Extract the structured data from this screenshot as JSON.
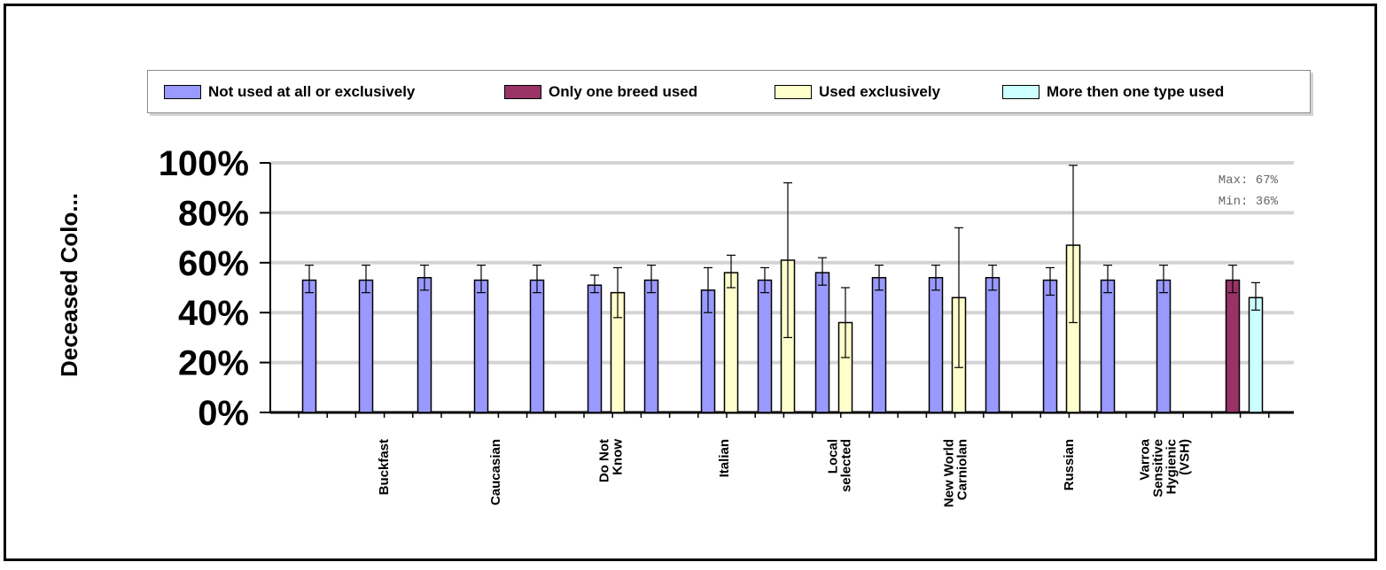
{
  "chart_data": {
    "type": "bar",
    "ylabel": "Deceased Colo...",
    "ylim": [
      0,
      100
    ],
    "yticks": [
      "0%",
      "20%",
      "40%",
      "60%",
      "80%",
      "100%"
    ],
    "grid": true,
    "legend_position": "top",
    "series": [
      {
        "name": "Not used at all or exclusively",
        "color": "#9999ff"
      },
      {
        "name": "Only one breed used",
        "color": "#993366"
      },
      {
        "name": "Used exclusively",
        "color": "#ffffcc"
      },
      {
        "name": "More then one type used",
        "color": "#ccffff"
      }
    ],
    "categories": [
      "Buckfast",
      "Caucasian",
      "Do Not Know",
      "Italian",
      "Local selected",
      "New World Carniolan",
      "Russian",
      "Varroa Sensitive Hygienic (VSH)"
    ],
    "bars": [
      {
        "series": 0,
        "value": 53,
        "low": 48,
        "high": 59
      },
      {
        "series": 0,
        "value": 53,
        "low": 48,
        "high": 59
      },
      {
        "series": 0,
        "value": 54,
        "low": 49,
        "high": 59
      },
      {
        "series": 0,
        "value": 53,
        "low": 48,
        "high": 59
      },
      {
        "series": 0,
        "value": 53,
        "low": 48,
        "high": 59
      },
      {
        "series": 0,
        "value": 51,
        "low": 48,
        "high": 55
      },
      {
        "series": 2,
        "value": 48,
        "low": 38,
        "high": 58
      },
      {
        "series": 0,
        "value": 53,
        "low": 48,
        "high": 59
      },
      {
        "series": 0,
        "value": 49,
        "low": 40,
        "high": 58
      },
      {
        "series": 2,
        "value": 56,
        "low": 50,
        "high": 63
      },
      {
        "series": 0,
        "value": 53,
        "low": 48,
        "high": 58
      },
      {
        "series": 2,
        "value": 61,
        "low": 30,
        "high": 92
      },
      {
        "series": 0,
        "value": 56,
        "low": 51,
        "high": 62
      },
      {
        "series": 2,
        "value": 36,
        "low": 22,
        "high": 50
      },
      {
        "series": 0,
        "value": 54,
        "low": 49,
        "high": 59
      },
      {
        "series": 0,
        "value": 54,
        "low": 49,
        "high": 59
      },
      {
        "series": 2,
        "value": 46,
        "low": 18,
        "high": 74
      },
      {
        "series": 0,
        "value": 54,
        "low": 49,
        "high": 59
      },
      {
        "series": 0,
        "value": 53,
        "low": 47,
        "high": 58
      },
      {
        "series": 2,
        "value": 67,
        "low": 36,
        "high": 99
      },
      {
        "series": 0,
        "value": 53,
        "low": 48,
        "high": 59
      },
      {
        "series": 0,
        "value": 53,
        "low": 48,
        "high": 59
      },
      {
        "series": 1,
        "value": 53,
        "low": 48,
        "high": 59
      },
      {
        "series": 3,
        "value": 46,
        "low": 41,
        "high": 52
      }
    ],
    "annotations": {
      "max": "Max: 67%",
      "min": "Min: 36%"
    }
  }
}
